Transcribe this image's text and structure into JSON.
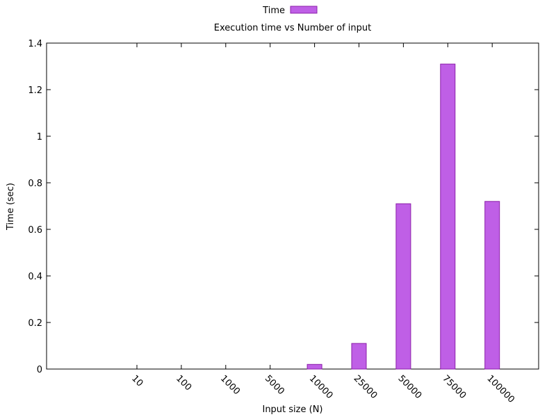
{
  "chart_data": {
    "type": "bar",
    "title": "Execution time vs Number of input",
    "xlabel": "Input size (N)",
    "ylabel": "Time (sec)",
    "categories": [
      "10",
      "100",
      "1000",
      "5000",
      "10000",
      "25000",
      "50000",
      "75000",
      "100000"
    ],
    "series": [
      {
        "name": "Time",
        "values": [
          0.0,
          0.0,
          0.0,
          0.0,
          0.02,
          0.11,
          0.71,
          1.31,
          0.72
        ],
        "color": "#bf5fe6",
        "stroke": "#8b1fa9"
      }
    ],
    "ylim": [
      0,
      1.4
    ],
    "yticks": [
      0,
      0.2,
      0.4,
      0.6,
      0.8,
      1,
      1.2,
      1.4
    ],
    "ytick_labels": [
      "0",
      "0.2",
      "0.4",
      "0.6",
      "0.8",
      "1",
      "1.2",
      "1.4"
    ],
    "grid": false,
    "legend": "top-center"
  }
}
